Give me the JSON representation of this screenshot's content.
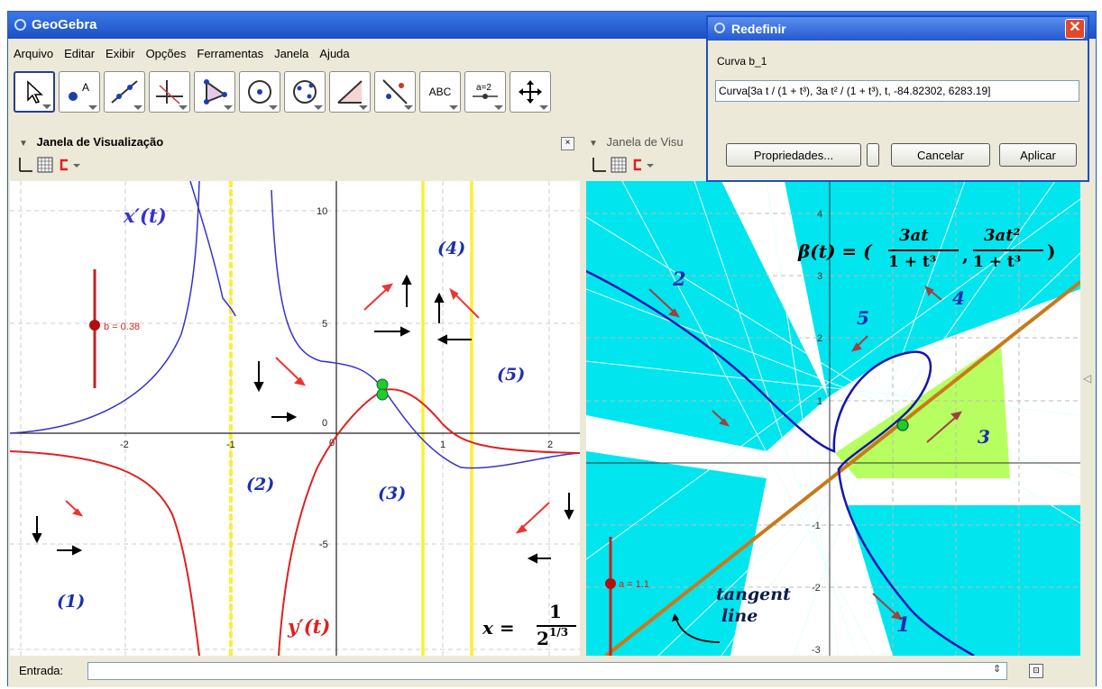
{
  "window": {
    "title": "GeoGebra"
  },
  "menu": [
    "Arquivo",
    "Editar",
    "Exibir",
    "Opções",
    "Ferramentas",
    "Janela",
    "Ajuda"
  ],
  "toolbar": {
    "tools": [
      "move-tool",
      "point-tool",
      "line-tool",
      "perpendicular-tool",
      "polygon-tool",
      "circle-center-tool",
      "conic-tool",
      "angle-tool",
      "reflect-tool",
      "text-tool",
      "slider-tool",
      "move-view-tool"
    ],
    "text_label": "ABC",
    "slider_label": "a=2"
  },
  "left_view": {
    "title": "Janela de Visualização",
    "slider": {
      "label": "b = 0.38"
    },
    "labels": {
      "xprime": "x′(t)",
      "yprime": "y′(t)",
      "r1": "(1)",
      "r2": "(2)",
      "r3": "(3)",
      "r4": "(4)",
      "r5": "(5)",
      "formula_x": "x =",
      "formula_num": "1",
      "formula_den": "2",
      "formula_exp": "1/3"
    },
    "ticks": {
      "x": [
        "-2",
        "-1",
        "0",
        "1",
        "2"
      ],
      "y": [
        "10",
        "5",
        "0",
        "-5"
      ]
    }
  },
  "right_view": {
    "title": "Janela de Visu",
    "slider": {
      "label": "a = 1.1"
    },
    "labels": {
      "beta": "β(t) = (",
      "frac1_num": "3at",
      "frac1_den": "1 + t³",
      "comma": ",",
      "frac2_num": "3at²",
      "frac2_den": "1 + t³",
      "close": ")",
      "n1": "1",
      "n2": "2",
      "n3": "3",
      "n4": "4",
      "n5": "5",
      "tangent1": "tangent",
      "tangent2": "line"
    },
    "ticks": {
      "y": [
        "4",
        "3",
        "2",
        "1",
        "-1",
        "-2",
        "-3"
      ]
    }
  },
  "input_bar": {
    "label": "Entrada:",
    "value": ""
  },
  "dialog": {
    "title": "Redefinir",
    "object_label": "Curva b_1",
    "definition": "Curva[3a t / (1 + t³), 3a t² / (1 + t³), t, -84.82302, 6283.19]",
    "buttons": {
      "properties": "Propriedades...",
      "cancel": "Cancelar",
      "apply": "Aplicar"
    }
  },
  "colors": {
    "blue_curve": "#3333cc",
    "red_curve": "#e02020",
    "yellow": "#ffee33",
    "cyan": "#00e5ee",
    "tangent": "#c87a1a",
    "green_region": "#aaff44"
  }
}
